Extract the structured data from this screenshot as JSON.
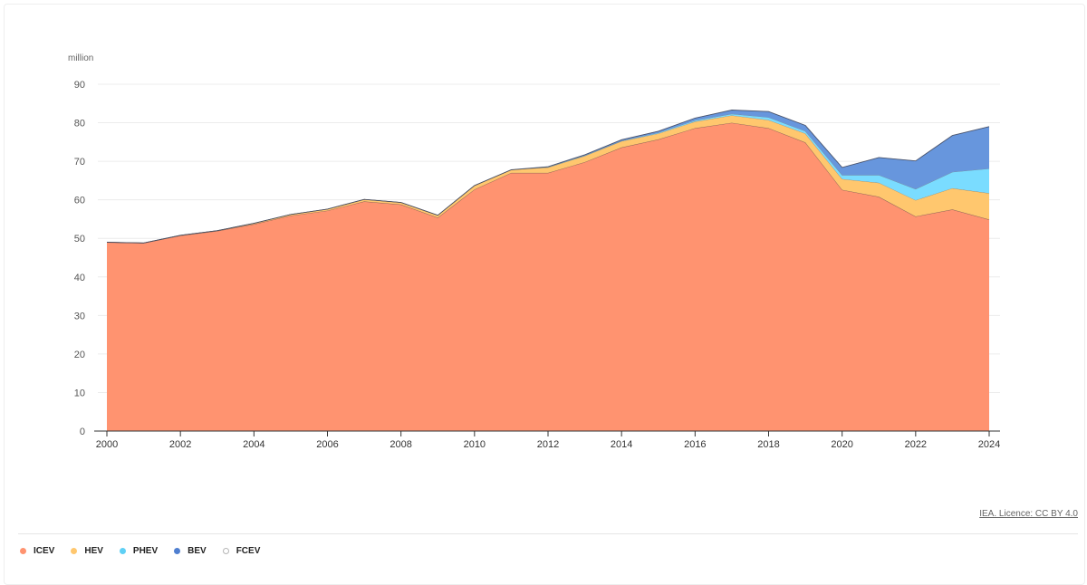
{
  "chart_data": {
    "type": "area",
    "stacked": true,
    "title": "",
    "xlabel": "",
    "ylabel": "million",
    "x": [
      2000,
      2001,
      2002,
      2003,
      2004,
      2005,
      2006,
      2007,
      2008,
      2009,
      2010,
      2011,
      2012,
      2013,
      2014,
      2015,
      2016,
      2017,
      2018,
      2019,
      2020,
      2021,
      2022,
      2023,
      2024
    ],
    "xlim": [
      2000,
      2024
    ],
    "ylim": [
      0,
      90
    ],
    "x_ticks": [
      "2000",
      "2002",
      "2004",
      "2006",
      "2008",
      "2010",
      "2012",
      "2014",
      "2016",
      "2018",
      "2020",
      "2022",
      "2024"
    ],
    "y_ticks": [
      "0",
      "10",
      "20",
      "30",
      "40",
      "50",
      "60",
      "70",
      "80",
      "90"
    ],
    "grid": true,
    "legend_position": "bottom-left",
    "series": [
      {
        "name": "ICEV",
        "color": "#ff9370",
        "values": [
          49.0,
          48.8,
          50.7,
          51.9,
          53.7,
          55.9,
          57.2,
          59.6,
          58.8,
          55.4,
          62.7,
          67.0,
          67.0,
          69.8,
          73.6,
          75.7,
          78.6,
          80.0,
          78.6,
          74.9,
          62.6,
          60.8,
          55.7,
          57.5,
          54.9
        ]
      },
      {
        "name": "HEV",
        "color": "#ffc76e",
        "values": [
          0.0,
          0.0,
          0.1,
          0.1,
          0.2,
          0.3,
          0.4,
          0.5,
          0.5,
          0.6,
          1.0,
          0.8,
          1.4,
          1.6,
          1.6,
          1.5,
          1.7,
          1.9,
          2.1,
          2.3,
          2.8,
          3.6,
          4.2,
          5.5,
          6.8
        ]
      },
      {
        "name": "PHEV",
        "color": "#7adcff",
        "values": [
          0.0,
          0.0,
          0.0,
          0.0,
          0.0,
          0.0,
          0.0,
          0.0,
          0.0,
          0.0,
          0.0,
          0.0,
          0.1,
          0.1,
          0.1,
          0.2,
          0.3,
          0.4,
          0.7,
          0.6,
          1.0,
          2.0,
          2.9,
          4.2,
          6.4
        ]
      },
      {
        "name": "BEV",
        "color": "#6796dd",
        "values": [
          0.0,
          0.0,
          0.0,
          0.0,
          0.0,
          0.0,
          0.0,
          0.0,
          0.0,
          0.0,
          0.0,
          0.0,
          0.1,
          0.2,
          0.3,
          0.4,
          0.6,
          1.0,
          1.5,
          1.5,
          2.0,
          4.6,
          7.3,
          9.5,
          10.9
        ]
      },
      {
        "name": "FCEV",
        "color": "#d9d9d9",
        "values": [
          0,
          0,
          0,
          0,
          0,
          0,
          0,
          0,
          0,
          0,
          0,
          0,
          0,
          0,
          0,
          0,
          0,
          0,
          0,
          0,
          0,
          0,
          0,
          0,
          0
        ]
      }
    ]
  },
  "source": "IEA. Licence: CC BY 4.0",
  "legend": [
    {
      "label": "ICEV",
      "color": "#ff9370",
      "style": "filled"
    },
    {
      "label": "HEV",
      "color": "#ffc76e",
      "style": "filled"
    },
    {
      "label": "PHEV",
      "color": "#5fd0f5",
      "style": "filled"
    },
    {
      "label": "BEV",
      "color": "#4f7fd0",
      "style": "filled"
    },
    {
      "label": "FCEV",
      "color": "#b5b5b5",
      "style": "outline"
    }
  ]
}
